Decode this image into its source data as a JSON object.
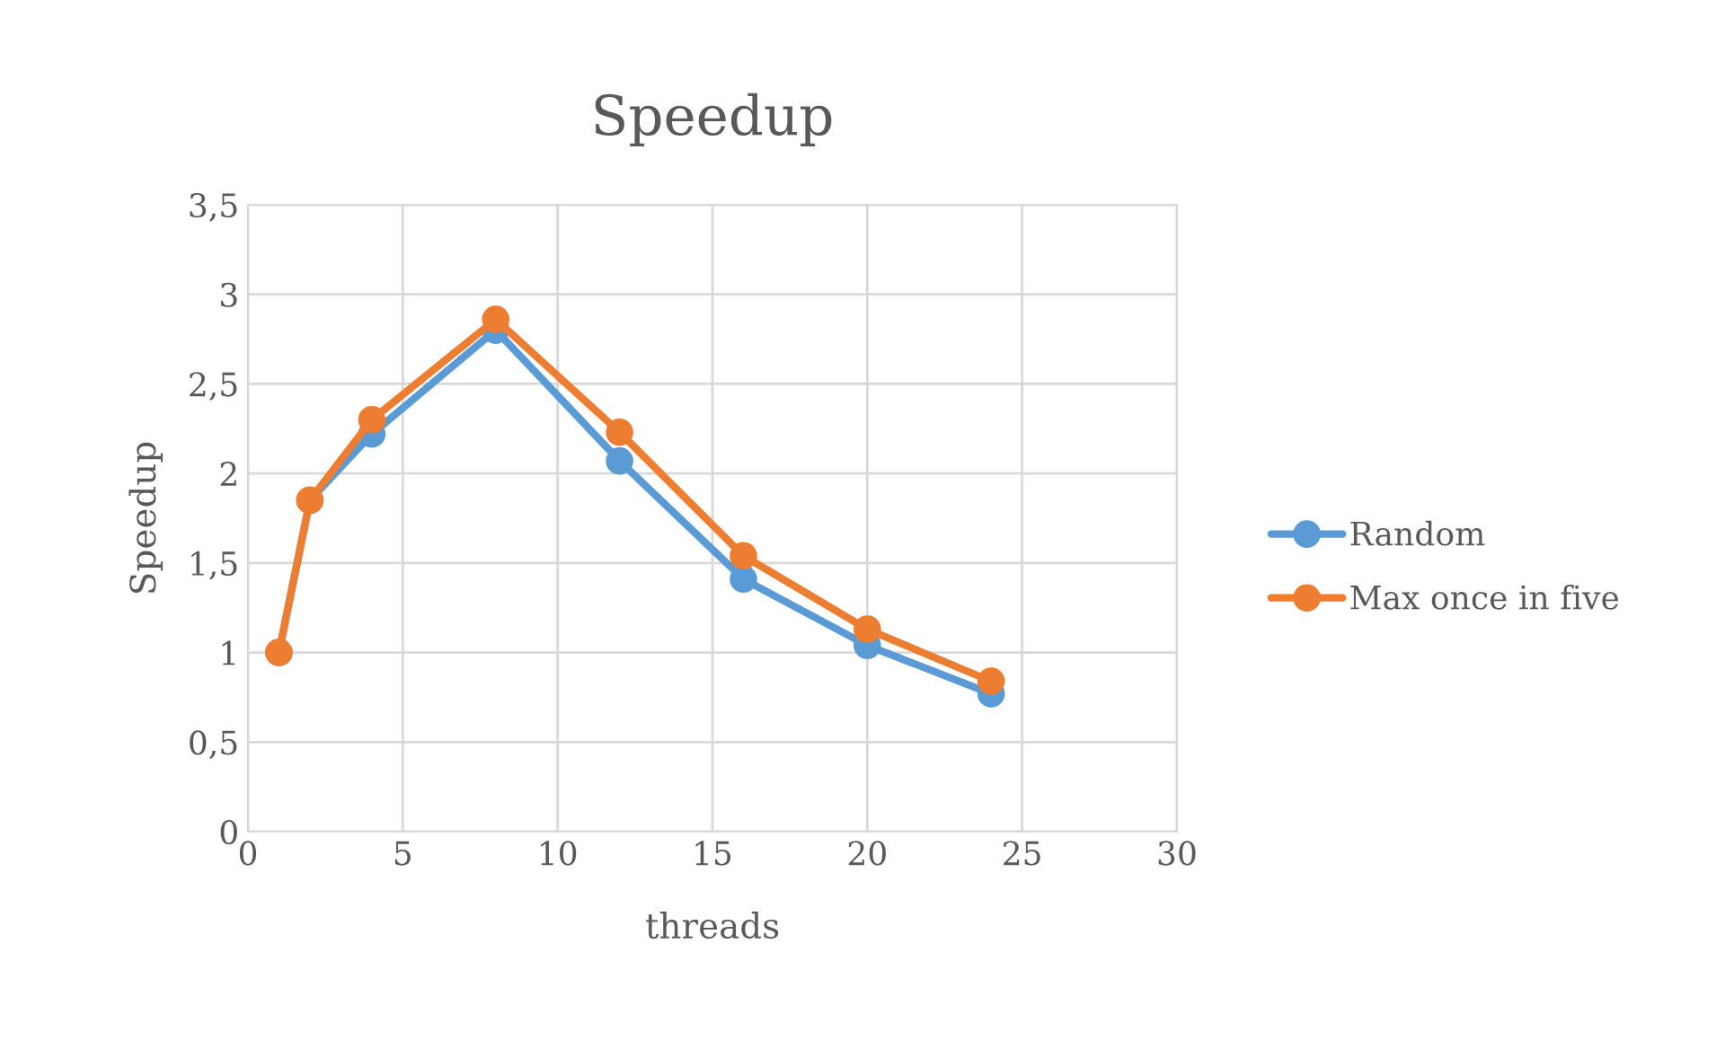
{
  "chart_data": {
    "type": "line",
    "title": "Speedup",
    "xlabel": "threads",
    "ylabel": "Speedup",
    "x": [
      1,
      2,
      4,
      8,
      12,
      16,
      20,
      24
    ],
    "series": [
      {
        "name": "Random",
        "color": "#5b9bd5",
        "values": [
          1.0,
          1.85,
          2.22,
          2.8,
          2.07,
          1.41,
          1.04,
          0.77
        ]
      },
      {
        "name": "Max once in five",
        "color": "#ed7d31",
        "values": [
          1.0,
          1.85,
          2.3,
          2.86,
          2.23,
          1.54,
          1.13,
          0.84
        ]
      }
    ],
    "xlim": [
      0,
      30
    ],
    "xticks": [
      0,
      5,
      10,
      15,
      20,
      25,
      30
    ],
    "ylim": [
      0,
      3.5
    ],
    "yticks": [
      0,
      {
        "value": 0.5,
        "label": "0,5"
      },
      1,
      {
        "value": 1.5,
        "label": "1,5"
      },
      2,
      {
        "value": 2.5,
        "label": "2,5"
      },
      3,
      {
        "value": 3.5,
        "label": "3,5"
      }
    ],
    "grid": true,
    "legend": "right",
    "marker": "circle",
    "line_style": "solid"
  }
}
